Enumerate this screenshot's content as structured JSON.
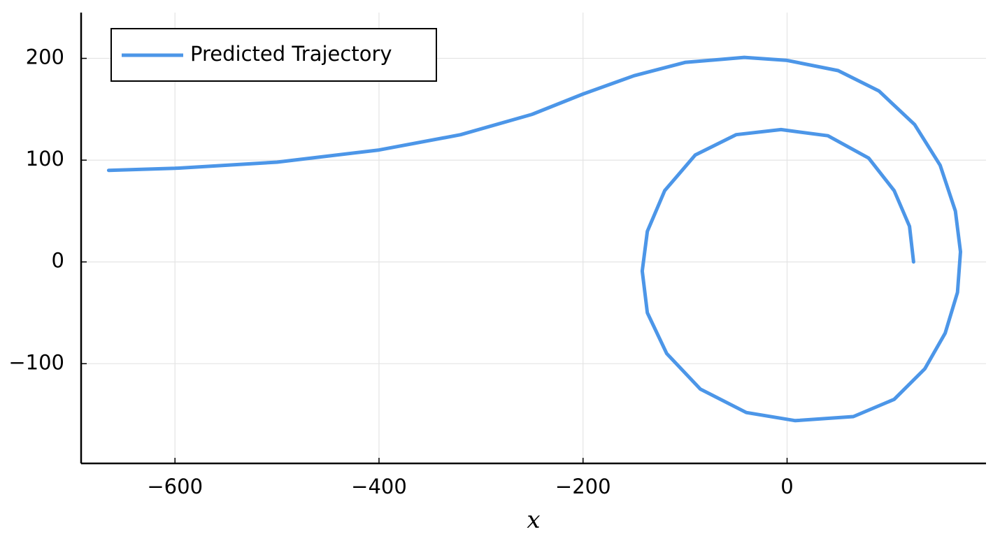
{
  "chart_data": {
    "type": "line",
    "xlabel": "x",
    "legend": "top-left",
    "grid": true,
    "xlim": [
      -692,
      195
    ],
    "ylim": [
      -198,
      245
    ],
    "xticks": [
      {
        "value": -600,
        "label": "−600"
      },
      {
        "value": -400,
        "label": "−400"
      },
      {
        "value": -200,
        "label": "−200"
      },
      0
    ],
    "yticks": [
      {
        "value": -100,
        "label": "−100"
      },
      0,
      100,
      200
    ],
    "series": [
      {
        "name": "Predicted Trajectory",
        "color": "#4c96e8",
        "x": [
          -665,
          -600,
          -500,
          -400,
          -320,
          -250,
          -200,
          -150,
          -100,
          -42,
          0,
          50,
          90,
          125,
          150,
          165,
          170,
          167,
          155,
          135,
          105,
          65,
          8,
          -40,
          -85,
          -118,
          -137,
          -142,
          -137,
          -120,
          -90,
          -50,
          -6,
          40,
          80,
          105,
          120,
          124
        ],
        "values": [
          90,
          92,
          98,
          110,
          125,
          145,
          165,
          183,
          196,
          201,
          198,
          188,
          168,
          135,
          95,
          50,
          10,
          -30,
          -70,
          -105,
          -135,
          -152,
          -156,
          -148,
          -125,
          -90,
          -50,
          -9,
          30,
          70,
          105,
          125,
          130,
          124,
          102,
          70,
          35,
          0
        ]
      }
    ]
  }
}
